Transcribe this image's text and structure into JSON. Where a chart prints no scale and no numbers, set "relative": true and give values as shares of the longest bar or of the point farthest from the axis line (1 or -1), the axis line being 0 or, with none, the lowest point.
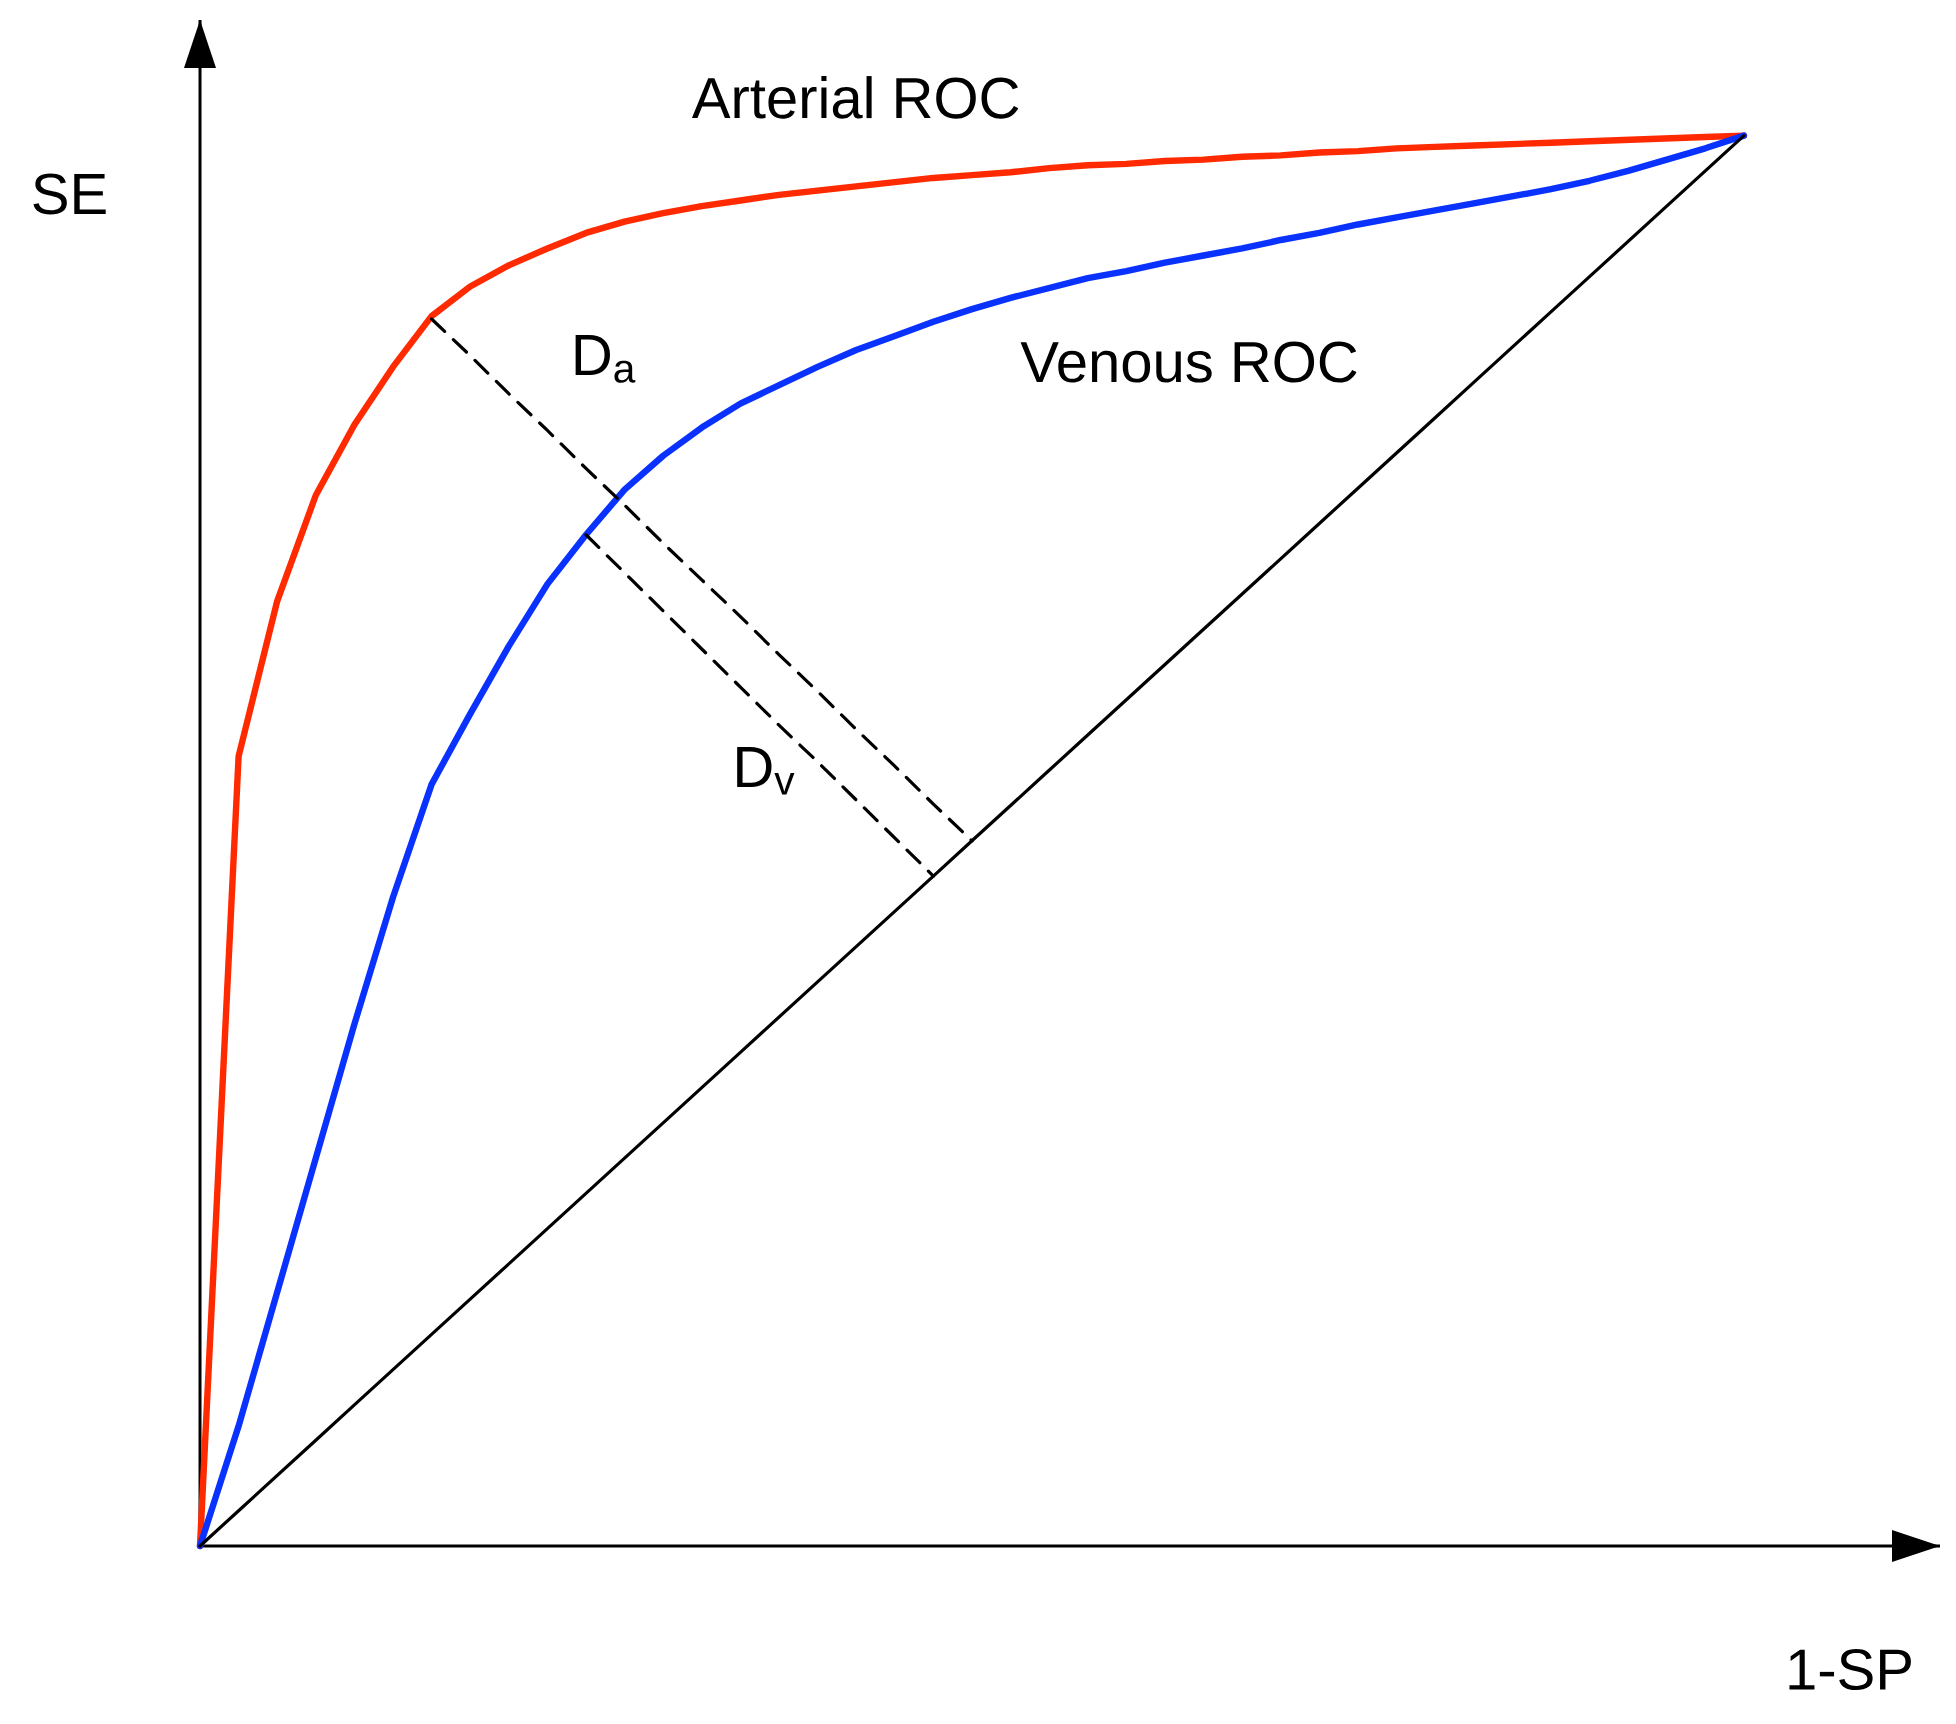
{
  "chart_data": {
    "type": "line",
    "relative": true,
    "xlabel": "1-SP",
    "ylabel": "SE",
    "marker": "none",
    "line_style": "solid",
    "categories": [
      null,
      null,
      null,
      null,
      null,
      null,
      null,
      null,
      null,
      null,
      null,
      null,
      null,
      null,
      null,
      null,
      null,
      null,
      null,
      null,
      null,
      null,
      null,
      null,
      null,
      null,
      null,
      null,
      null,
      null,
      null,
      null,
      null,
      null,
      null,
      null,
      null,
      null,
      null,
      null,
      null
    ],
    "series": [
      {
        "name": "Arterial ROC",
        "color": "#ff2a00",
        "values": [
          0,
          0.56,
          0.67,
          0.745,
          0.795,
          0.836,
          0.872,
          0.893,
          0.908,
          0.92,
          0.931,
          0.939,
          0.945,
          0.95,
          0.954,
          0.958,
          0.961,
          0.964,
          0.967,
          0.97,
          0.972,
          0.974,
          0.977,
          0.979,
          0.98,
          0.982,
          0.983,
          0.985,
          0.986,
          0.988,
          0.989,
          0.991,
          0.992,
          0.993,
          0.994,
          0.995,
          0.996,
          0.997,
          0.998,
          0.999,
          1
        ]
      },
      {
        "name": "Venous ROC",
        "color": "#0a32ff",
        "values": [
          0,
          0.085,
          0.18,
          0.275,
          0.37,
          0.46,
          0.54,
          0.59,
          0.638,
          0.682,
          0.717,
          0.749,
          0.773,
          0.793,
          0.81,
          0.823,
          0.836,
          0.848,
          0.858,
          0.868,
          0.877,
          0.885,
          0.892,
          0.899,
          0.904,
          0.91,
          0.915,
          0.92,
          0.926,
          0.931,
          0.937,
          0.942,
          0.947,
          0.952,
          0.957,
          0.962,
          0.968,
          0.975,
          0.983,
          0.991,
          1
        ]
      },
      {
        "color": "#000000",
        "values": [
          0,
          0.025,
          0.05,
          0.075,
          0.1,
          0.125,
          0.15,
          0.175,
          0.2,
          0.225,
          0.25,
          0.275,
          0.3,
          0.325,
          0.35,
          0.375,
          0.4,
          0.425,
          0.45,
          0.475,
          0.5,
          0.525,
          0.55,
          0.575,
          0.6,
          0.625,
          0.65,
          0.675,
          0.7,
          0.725,
          0.75,
          0.775,
          0.8,
          0.825,
          0.85,
          0.875,
          0.9,
          0.925,
          0.95,
          0.975,
          1
        ]
      },
      {
        "color": "#000000",
        "line_style": "dashed",
        "values": [
          null,
          null,
          null,
          null,
          null,
          null,
          0.87,
          0.844,
          0.817,
          0.791,
          0.764,
          0.738,
          0.711,
          0.685,
          0.659,
          0.632,
          0.606,
          0.579,
          0.553,
          0.526,
          0.5,
          null,
          null,
          null,
          null,
          null,
          null,
          null,
          null,
          null,
          null,
          null,
          null,
          null,
          null,
          null,
          null,
          null,
          null,
          null,
          null
        ]
      },
      {
        "color": "#000000",
        "line_style": "dashed",
        "values": [
          null,
          null,
          null,
          null,
          null,
          null,
          null,
          null,
          null,
          null,
          0.717,
          0.69,
          0.663,
          0.636,
          0.609,
          0.582,
          0.556,
          0.529,
          0.502,
          0.475,
          null,
          null,
          null,
          null,
          null,
          null,
          null,
          null,
          null,
          null,
          null,
          null,
          null,
          null,
          null,
          null,
          null,
          null,
          null,
          null,
          null
        ]
      }
    ],
    "annotations": [
      "D$_{a}$",
      "D$_{v}$"
    ]
  }
}
